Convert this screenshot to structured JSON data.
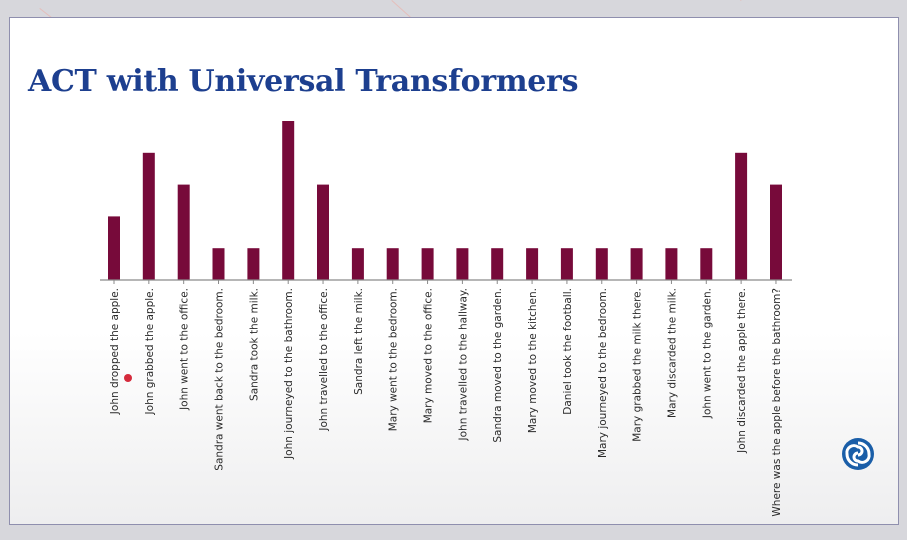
{
  "slide": {
    "title": "ACT with Universal Transformers"
  },
  "colors": {
    "bar": "#770a3a",
    "axis": "#8a8a8a",
    "title": "#1d3f8f",
    "logo": "#1a5ea8"
  },
  "icons": {
    "logo": "deepmind-logo-icon"
  },
  "chart_data": {
    "type": "bar",
    "categories": [
      "John dropped the apple.",
      "John grabbed the apple.",
      "John went to the office.",
      "Sandra went back to the bedroom.",
      "Sandra took the milk.",
      "John journeyed to the bathroom.",
      "John travelled to the office.",
      "Sandra left the milk.",
      "Mary went to the bedroom.",
      "Mary moved to the office.",
      "John travelled to the hallway.",
      "Sandra moved to the garden.",
      "Mary moved to the kitchen.",
      "Daniel took the football.",
      "Mary journeyed to the bedroom.",
      "Mary grabbed the milk there.",
      "Mary discarded the milk.",
      "John went to the garden.",
      "John discarded the apple there.",
      "Where was the apple before the bathroom?"
    ],
    "values": [
      2,
      4,
      3,
      1,
      1,
      5,
      3,
      1,
      1,
      1,
      1,
      1,
      1,
      1,
      1,
      1,
      1,
      1,
      4,
      3
    ],
    "ylim": [
      0,
      5
    ],
    "title": "",
    "xlabel": "",
    "ylabel": "",
    "grid": false,
    "legend": "none"
  }
}
